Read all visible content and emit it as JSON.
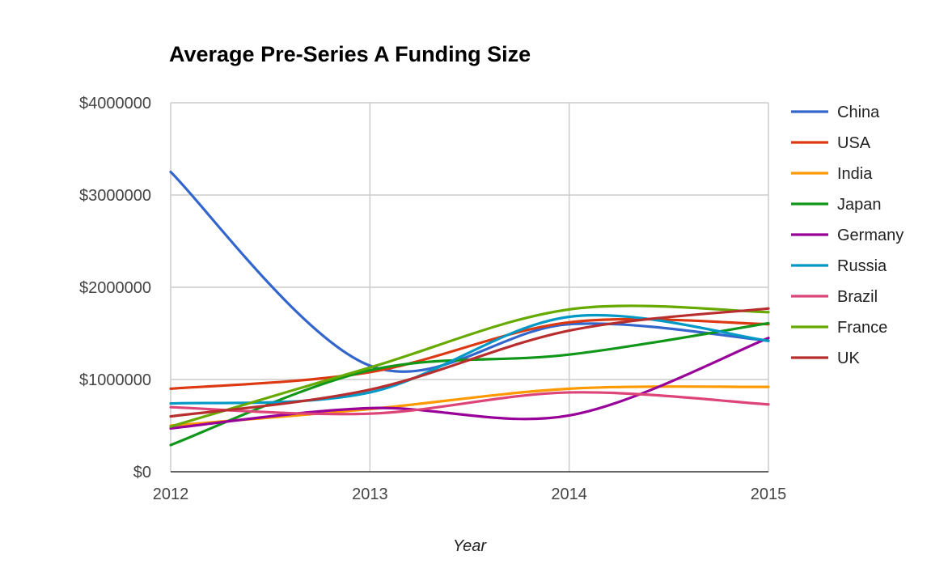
{
  "chart_data": {
    "type": "line",
    "title": "Average Pre-Series A Funding Size",
    "xlabel": "Year",
    "ylabel": "",
    "x": [
      2012,
      2013,
      2014,
      2015
    ],
    "x_tick_labels": [
      "2012",
      "2013",
      "2014",
      "2015"
    ],
    "ylim": [
      0,
      4000000
    ],
    "y_ticks": [
      0,
      1000000,
      2000000,
      3000000,
      4000000
    ],
    "y_tick_labels": [
      "$0",
      "$1000000",
      "$2000000",
      "$3000000",
      "$4000000"
    ],
    "grid": true,
    "legend_position": "right",
    "smooth": true,
    "series": [
      {
        "name": "China",
        "color": "#3366cc",
        "values": [
          3250000,
          1150000,
          1600000,
          1420000
        ]
      },
      {
        "name": "USA",
        "color": "#dc3912",
        "values": [
          900000,
          1080000,
          1620000,
          1600000
        ]
      },
      {
        "name": "India",
        "color": "#ff9900",
        "values": [
          500000,
          680000,
          900000,
          920000
        ]
      },
      {
        "name": "Japan",
        "color": "#109618",
        "values": [
          290000,
          1100000,
          1270000,
          1610000
        ]
      },
      {
        "name": "Germany",
        "color": "#990099",
        "values": [
          470000,
          690000,
          610000,
          1450000
        ]
      },
      {
        "name": "Russia",
        "color": "#0099c6",
        "values": [
          740000,
          860000,
          1680000,
          1420000
        ]
      },
      {
        "name": "Brazil",
        "color": "#dd4477",
        "values": [
          700000,
          630000,
          860000,
          730000
        ]
      },
      {
        "name": "France",
        "color": "#66aa00",
        "values": [
          490000,
          1130000,
          1760000,
          1730000
        ]
      },
      {
        "name": "UK",
        "color": "#b82e2e",
        "values": [
          600000,
          890000,
          1530000,
          1770000
        ]
      }
    ]
  }
}
